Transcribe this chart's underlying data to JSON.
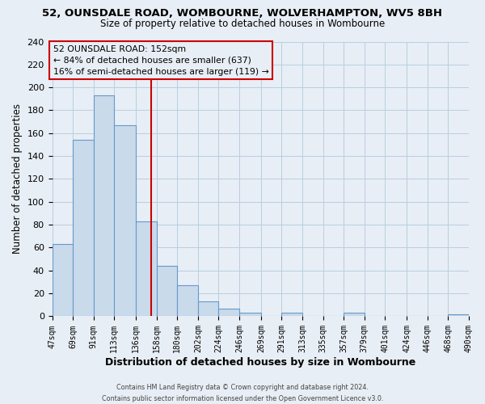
{
  "title_line1": "52, OUNSDALE ROAD, WOMBOURNE, WOLVERHAMPTON, WV5 8BH",
  "title_line2": "Size of property relative to detached houses in Wombourne",
  "xlabel": "Distribution of detached houses by size in Wombourne",
  "ylabel": "Number of detached properties",
  "bin_edges": [
    47,
    69,
    91,
    113,
    136,
    158,
    180,
    202,
    224,
    246,
    269,
    291,
    313,
    335,
    357,
    379,
    401,
    424,
    446,
    468,
    490
  ],
  "bin_counts": [
    63,
    154,
    193,
    167,
    83,
    44,
    27,
    13,
    7,
    3,
    0,
    3,
    0,
    0,
    3,
    0,
    0,
    0,
    0,
    2
  ],
  "bar_color": "#c9daea",
  "bar_edge_color": "#6699cc",
  "property_value": 152,
  "red_line_color": "#cc0000",
  "annotation_text_line1": "52 OUNSDALE ROAD: 152sqm",
  "annotation_text_line2": "← 84% of detached houses are smaller (637)",
  "annotation_text_line3": "16% of semi-detached houses are larger (119) →",
  "annotation_box_edge_color": "#cc0000",
  "ylim": [
    0,
    240
  ],
  "yticks": [
    0,
    20,
    40,
    60,
    80,
    100,
    120,
    140,
    160,
    180,
    200,
    220,
    240
  ],
  "tick_labels": [
    "47sqm",
    "69sqm",
    "91sqm",
    "113sqm",
    "136sqm",
    "158sqm",
    "180sqm",
    "202sqm",
    "224sqm",
    "246sqm",
    "269sqm",
    "291sqm",
    "313sqm",
    "335sqm",
    "357sqm",
    "379sqm",
    "401sqm",
    "424sqm",
    "446sqm",
    "468sqm",
    "490sqm"
  ],
  "footer_line1": "Contains HM Land Registry data © Crown copyright and database right 2024.",
  "footer_line2": "Contains public sector information licensed under the Open Government Licence v3.0.",
  "grid_color": "#b8cfe0",
  "background_color": "#e8eef5",
  "plot_bg_color": "#e8eef5"
}
